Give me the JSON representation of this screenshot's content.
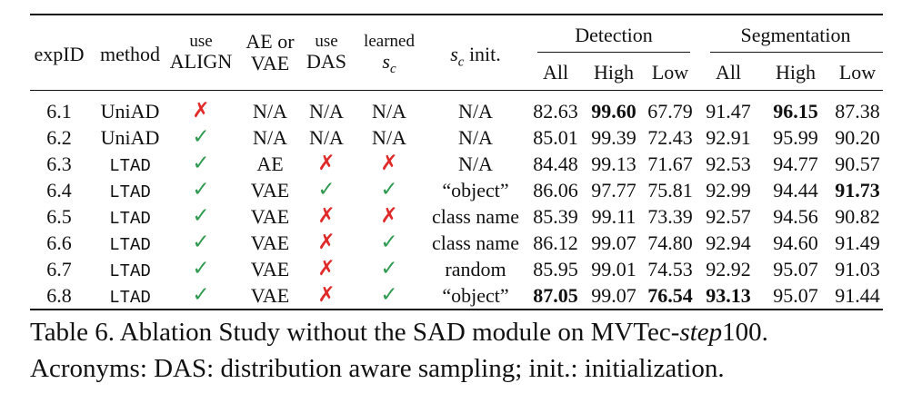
{
  "table": {
    "headers": {
      "expid": "expID",
      "method": "method",
      "use_align": [
        "use",
        "ALIGN"
      ],
      "ae_or_vae": [
        "AE or",
        "VAE"
      ],
      "use_das": [
        "use",
        "DAS"
      ],
      "learned_sc": [
        "learned",
        "s",
        "c"
      ],
      "sc_init": [
        "s",
        "c",
        " init."
      ],
      "detection_group": "Detection",
      "segmentation_group": "Segmentation",
      "sub": [
        "All",
        "High",
        "Low",
        "All",
        "High",
        "Low"
      ]
    },
    "rows": [
      {
        "expid": "6.1",
        "method": "UniAD",
        "method_mono": false,
        "align": "cross",
        "ae": "N/A",
        "das": "N/A",
        "learned": "N/A",
        "init": "N/A",
        "values": [
          "82.63",
          "99.60",
          "67.79",
          "91.47",
          "96.15",
          "87.38"
        ],
        "bold": [
          false,
          true,
          false,
          false,
          true,
          false
        ]
      },
      {
        "expid": "6.2",
        "method": "UniAD",
        "method_mono": false,
        "align": "check",
        "ae": "N/A",
        "das": "N/A",
        "learned": "N/A",
        "init": "N/A",
        "values": [
          "85.01",
          "99.39",
          "72.43",
          "92.91",
          "95.99",
          "90.20"
        ],
        "bold": [
          false,
          false,
          false,
          false,
          false,
          false
        ]
      },
      {
        "expid": "6.3",
        "method": "LTAD",
        "method_mono": true,
        "align": "check",
        "ae": "AE",
        "das": "cross",
        "learned": "cross",
        "init": "N/A",
        "values": [
          "84.48",
          "99.13",
          "71.67",
          "92.53",
          "94.77",
          "90.57"
        ],
        "bold": [
          false,
          false,
          false,
          false,
          false,
          false
        ]
      },
      {
        "expid": "6.4",
        "method": "LTAD",
        "method_mono": true,
        "align": "check",
        "ae": "VAE",
        "das": "check",
        "learned": "check",
        "init": "“object”",
        "values": [
          "86.06",
          "97.77",
          "75.81",
          "92.99",
          "94.44",
          "91.73"
        ],
        "bold": [
          false,
          false,
          false,
          false,
          false,
          true
        ]
      },
      {
        "expid": "6.5",
        "method": "LTAD",
        "method_mono": true,
        "align": "check",
        "ae": "VAE",
        "das": "cross",
        "learned": "cross",
        "init": "class name",
        "values": [
          "85.39",
          "99.11",
          "73.39",
          "92.57",
          "94.56",
          "90.82"
        ],
        "bold": [
          false,
          false,
          false,
          false,
          false,
          false
        ]
      },
      {
        "expid": "6.6",
        "method": "LTAD",
        "method_mono": true,
        "align": "check",
        "ae": "VAE",
        "das": "cross",
        "learned": "check",
        "init": "class name",
        "values": [
          "86.12",
          "99.07",
          "74.80",
          "92.94",
          "94.60",
          "91.49"
        ],
        "bold": [
          false,
          false,
          false,
          false,
          false,
          false
        ]
      },
      {
        "expid": "6.7",
        "method": "LTAD",
        "method_mono": true,
        "align": "check",
        "ae": "VAE",
        "das": "cross",
        "learned": "check",
        "init": "random",
        "values": [
          "85.95",
          "99.01",
          "74.53",
          "92.92",
          "95.07",
          "91.03"
        ],
        "bold": [
          false,
          false,
          false,
          false,
          false,
          false
        ]
      },
      {
        "expid": "6.8",
        "method": "LTAD",
        "method_mono": true,
        "align": "check",
        "ae": "VAE",
        "das": "cross",
        "learned": "check",
        "init": "“object”",
        "values": [
          "87.05",
          "99.07",
          "76.54",
          "93.13",
          "95.07",
          "91.44"
        ],
        "bold": [
          true,
          false,
          true,
          true,
          false,
          false
        ]
      }
    ],
    "glyphs": {
      "check": "✓",
      "cross": "✗"
    },
    "colors": {
      "check": "#2f9a4f",
      "cross": "#e02a2a"
    }
  },
  "caption": {
    "line1_prefix": "Table 6. Ablation Study without the SAD module on MVTec-",
    "line1_italic": "step",
    "line1_suffix": "100.",
    "line2": "Acronyms: DAS: distribution aware sampling; init.: initialization."
  }
}
